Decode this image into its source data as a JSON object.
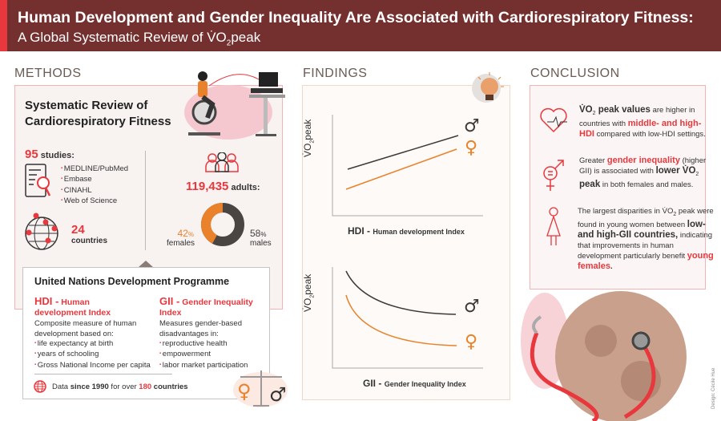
{
  "header": {
    "title": "Human Development and Gender Inequality Are Associated with Cardiorespiratory Fitness:",
    "subtitle_prefix": "A Global Systematic Review of ",
    "subtitle_vo": "V̇O",
    "subtitle_sub": "2",
    "subtitle_suffix": "peak"
  },
  "colors": {
    "header_bg": "#74302f",
    "accent_red": "#e8373d",
    "female_orange": "#e9822a",
    "male_dark": "#3d3a38"
  },
  "methods": {
    "section_title": "METHODS",
    "review_title_1": "Systematic Review of",
    "review_title_2": "Cardiorespiratory Fitness",
    "studies_count": "95",
    "studies_label": "studies:",
    "databases": [
      "MEDLINE/PubMed",
      "Embase",
      "CINAHL",
      "Web of Science"
    ],
    "countries_count": "24",
    "countries_label": "countries",
    "adults_count": "119,435",
    "adults_label": "adults:",
    "females_pct": "42",
    "females_label": "females",
    "males_pct": "58",
    "males_label": "males",
    "pct_sign": "%",
    "female_fraction": 0.42
  },
  "undp": {
    "title": "United Nations Development Programme",
    "hdi_abbr": "HDI -",
    "hdi_name": "Human development Index",
    "hdi_desc": "Composite measure  of human development based on:",
    "hdi_items": [
      "life expectancy at birth",
      "years of schooling",
      "Gross National Income per capita"
    ],
    "gii_abbr": "GII -",
    "gii_name": "Gender Inequality Index",
    "gii_desc": "Measures gender-based disadvantages in:",
    "gii_items": [
      "reproductive health",
      "empowerment",
      "labor market participation"
    ],
    "data_1": "Data ",
    "data_2": "since 1990",
    "data_3": " for over ",
    "data_4": "180",
    "data_5": " countries"
  },
  "findings": {
    "section_title": "FINDINGS",
    "ylabel_vo": "V̇O",
    "ylabel_sub": "2",
    "ylabel_peak": "peak",
    "hdi_abbr": "HDI -",
    "hdi_name": "Human development Index",
    "gii_abbr": "GII -",
    "gii_name": "Gender Inequality Index",
    "male_symbol": "♂",
    "female_symbol": "♀"
  },
  "conclusion": {
    "section_title": "CONCLUSION",
    "p1": {
      "vo": "V̇O",
      "sub": "2",
      "b": " peak values",
      "t1": " are higher in countries with ",
      "hl": "middle- and high-HDI",
      "t2": " compared with low-HDI settings."
    },
    "p2": {
      "t0": "Greater ",
      "hl": "gender inequality",
      "t1": " (higher GII) is associated with ",
      "b1": "lower V̇O",
      "sub": "2",
      "b2": " peak",
      "t2": " in both females and males."
    },
    "p3": {
      "t0": "The largest disparities in V̇O",
      "sub": "2",
      "t1": " peak were found in young women between ",
      "b": "low- and high-GII countries,",
      "t2": " indicating that improvements in human development particularly benefit ",
      "hl": "young females",
      "t3": "."
    }
  },
  "credit": "Design: Cécile Hue"
}
